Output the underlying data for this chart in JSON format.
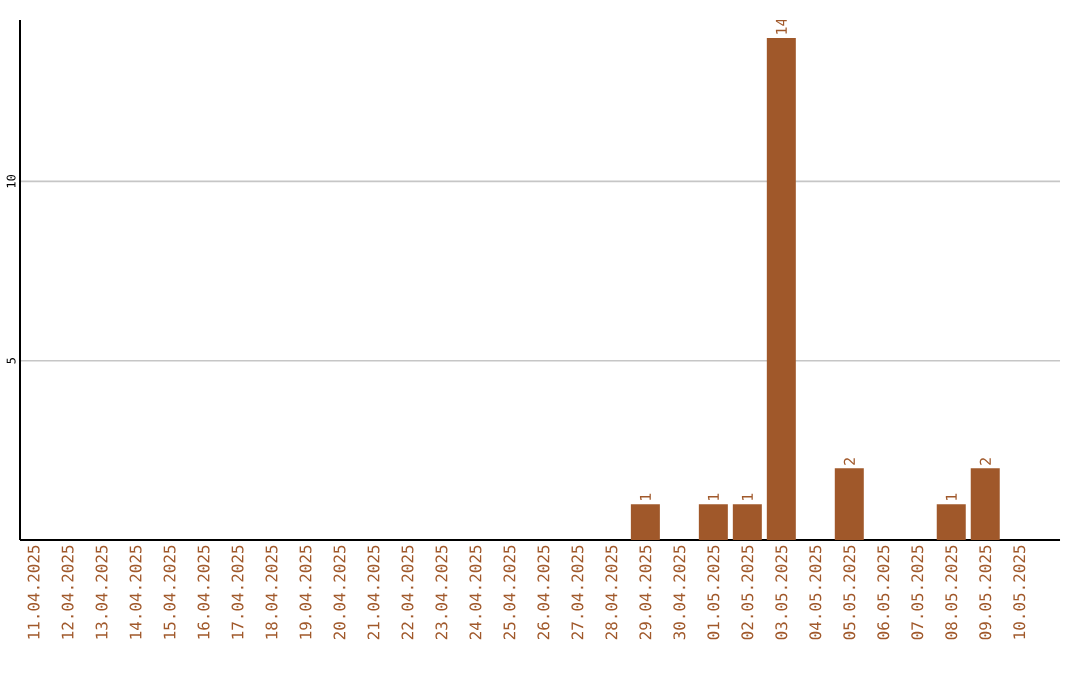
{
  "chart_data": {
    "type": "bar",
    "categories": [
      "11.04.2025",
      "12.04.2025",
      "13.04.2025",
      "14.04.2025",
      "15.04.2025",
      "16.04.2025",
      "17.04.2025",
      "18.04.2025",
      "19.04.2025",
      "20.04.2025",
      "21.04.2025",
      "22.04.2025",
      "23.04.2025",
      "24.04.2025",
      "25.04.2025",
      "26.04.2025",
      "27.04.2025",
      "28.04.2025",
      "29.04.2025",
      "30.04.2025",
      "01.05.2025",
      "02.05.2025",
      "03.05.2025",
      "04.05.2025",
      "05.05.2025",
      "06.05.2025",
      "07.05.2025",
      "08.05.2025",
      "09.05.2025",
      "10.05.2025"
    ],
    "values": [
      0,
      0,
      0,
      0,
      0,
      0,
      0,
      0,
      0,
      0,
      0,
      0,
      0,
      0,
      0,
      0,
      0,
      0,
      1,
      0,
      1,
      1,
      14,
      0,
      2,
      0,
      0,
      1,
      2,
      0
    ],
    "value_labels": [
      null,
      null,
      null,
      null,
      null,
      null,
      null,
      null,
      null,
      null,
      null,
      null,
      null,
      null,
      null,
      null,
      null,
      null,
      "1",
      null,
      "1",
      "1",
      "14",
      null,
      "2",
      null,
      null,
      "1",
      "2",
      null
    ],
    "color": "#a0582a",
    "ylim": [
      0,
      14.5
    ],
    "yticks": [
      5,
      10
    ],
    "grid": "y"
  }
}
